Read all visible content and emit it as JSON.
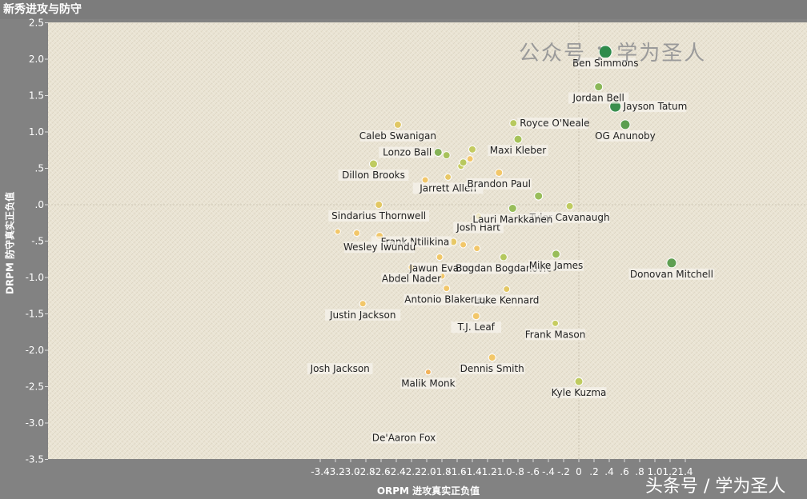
{
  "title": "新秀进攻与防守",
  "watermark_top": "公众号 ：学为圣人",
  "watermark_bottom": "头条号 / 学为圣人",
  "chart_data": {
    "type": "scatter",
    "title": "新秀进攻与防守",
    "xlabel": "ORPM 进攻真实正负值",
    "ylabel": "DRPM 防守真实正负值",
    "xlim": [
      -3.5,
      1.5
    ],
    "ylim": [
      -3.6,
      2.6
    ],
    "x_ticks": [
      {
        "v": -3.4,
        "t": "-3.4"
      },
      {
        "v": -3.2,
        "t": "-3.2"
      },
      {
        "v": -3.0,
        "t": "-3.0"
      },
      {
        "v": -2.8,
        "t": "-2.8"
      },
      {
        "v": -2.6,
        "t": "-2.6"
      },
      {
        "v": -2.4,
        "t": "-2.4"
      },
      {
        "v": -2.2,
        "t": "-2.2"
      },
      {
        "v": -2.0,
        "t": "-2.0"
      },
      {
        "v": -1.8,
        "t": "-1.8"
      },
      {
        "v": -1.6,
        "t": "-1.6"
      },
      {
        "v": -1.4,
        "t": "-1.4"
      },
      {
        "v": -1.2,
        "t": "-1.2"
      },
      {
        "v": -1.0,
        "t": "-1.0"
      },
      {
        "v": -0.8,
        "t": "-.8"
      },
      {
        "v": -0.6,
        "t": "-.6"
      },
      {
        "v": -0.4,
        "t": "-.4"
      },
      {
        "v": -0.2,
        "t": "-.2"
      },
      {
        "v": 0.0,
        "t": "0"
      },
      {
        "v": 0.2,
        "t": ".2"
      },
      {
        "v": 0.4,
        "t": ".4"
      },
      {
        "v": 0.6,
        "t": ".6"
      },
      {
        "v": 0.8,
        "t": ".8"
      },
      {
        "v": 1.0,
        "t": "1.0"
      },
      {
        "v": 1.2,
        "t": "1.2"
      },
      {
        "v": 1.4,
        "t": "1.4"
      }
    ],
    "y_ticks": [
      {
        "v": 2.5,
        "t": "2.5"
      },
      {
        "v": 2.0,
        "t": "2.0"
      },
      {
        "v": 1.5,
        "t": "1.5"
      },
      {
        "v": 1.0,
        "t": "1.0"
      },
      {
        "v": 0.5,
        "t": ".5"
      },
      {
        "v": 0.0,
        "t": ".0"
      },
      {
        "v": -0.5,
        "t": "-.5"
      },
      {
        "v": -1.0,
        "t": "-1.0"
      },
      {
        "v": -1.5,
        "t": "-1.5"
      },
      {
        "v": -2.0,
        "t": "-2.0"
      },
      {
        "v": -2.5,
        "t": "-2.5"
      },
      {
        "v": -3.0,
        "t": "-3.0"
      },
      {
        "v": -3.5,
        "t": "-3.5"
      }
    ],
    "grid": false,
    "legend": "none",
    "colors": {
      "plot_bg": "#e9e3d3",
      "high": "#2e8b4b",
      "mid": "#9dbf5b",
      "low": "#f2c76a"
    },
    "points": [
      {
        "name": "Ben Simmons",
        "x": 0.35,
        "y": 2.1,
        "size": 8,
        "color": "#2e8b4b"
      },
      {
        "name": "Jayson Tatum",
        "x": 0.48,
        "y": 1.35,
        "size": 7,
        "color": "#3a8f4e"
      },
      {
        "name": "OG Anunoby",
        "x": 0.61,
        "y": 1.1,
        "size": 6,
        "color": "#5a9e50"
      },
      {
        "name": "Jordan Bell",
        "x": 0.26,
        "y": 1.62,
        "size": 5,
        "color": "#8bb859"
      },
      {
        "name": "Donovan Mitchell",
        "x": 1.22,
        "y": -0.8,
        "size": 6,
        "color": "#5f9f52"
      },
      {
        "name": "Royce O'Neale",
        "x": -0.86,
        "y": 1.12,
        "size": 4.5,
        "color": "#b7c95e"
      },
      {
        "name": "Maxi Kleber",
        "x": -0.8,
        "y": 0.9,
        "size": 5,
        "color": "#a6c25b"
      },
      {
        "name": "Lonzo Ball",
        "x": -1.85,
        "y": 0.72,
        "size": 5,
        "color": "#86b357"
      },
      {
        "name": "Caleb Swanigan",
        "x": -2.38,
        "y": 1.1,
        "size": 4.5,
        "color": "#e0c764"
      },
      {
        "name": "Dillon Brooks",
        "x": -2.7,
        "y": 0.56,
        "size": 5,
        "color": "#bfcb60"
      },
      {
        "name": "Brandon Paul",
        "x": -1.05,
        "y": 0.44,
        "size": 4.5,
        "color": "#f2c76a"
      },
      {
        "name": "Jarrett Allen",
        "x": -1.72,
        "y": 0.38,
        "size": 4,
        "color": "#e8c866"
      },
      {
        "name": "Sindarius Thornwell",
        "x": -2.63,
        "y": 0.0,
        "size": 4.5,
        "color": "#e2c763"
      },
      {
        "name": "Josh Hart",
        "x": -1.32,
        "y": -0.16,
        "size": 4,
        "color": "#dcc662"
      },
      {
        "name": "Lauri Markkanen",
        "x": -0.87,
        "y": -0.05,
        "size": 5,
        "color": "#98bd5a"
      },
      {
        "name": "Tyler Cavanaugh",
        "x": -0.12,
        "y": -0.02,
        "size": 4.5,
        "color": "#bfcb60"
      },
      {
        "name": "Frank Ntilikina",
        "x": -1.65,
        "y": -0.51,
        "size": 4.5,
        "color": "#e7c865"
      },
      {
        "name": "Wesley Iwundu",
        "x": -2.62,
        "y": -0.43,
        "size": 4.5,
        "color": "#f1c76a"
      },
      {
        "name": "Jawun Evans",
        "x": -1.83,
        "y": -0.72,
        "size": 4,
        "color": "#f0c769"
      },
      {
        "name": "Bogdan Bogdanovic",
        "x": -0.99,
        "y": -0.72,
        "size": 4.5,
        "color": "#b4c85e"
      },
      {
        "name": "Mike James",
        "x": -0.3,
        "y": -0.68,
        "size": 5,
        "color": "#98bd5a"
      },
      {
        "name": "Abdel Nader",
        "x": -2.2,
        "y": -0.86,
        "size": 4,
        "color": "#f2c76a"
      },
      {
        "name": "Antonio Blakeney",
        "x": -1.74,
        "y": -1.15,
        "size": 4,
        "color": "#f2c76a"
      },
      {
        "name": "Luke Kennard",
        "x": -0.95,
        "y": -1.16,
        "size": 4,
        "color": "#e3c764"
      },
      {
        "name": "Justin Jackson",
        "x": -2.84,
        "y": -1.36,
        "size": 4,
        "color": "#f2c76a"
      },
      {
        "name": "T.J. Leaf",
        "x": -1.35,
        "y": -1.53,
        "size": 4.5,
        "color": "#f2c76a"
      },
      {
        "name": "Frank Mason",
        "x": -0.31,
        "y": -1.63,
        "size": 4,
        "color": "#c7cc61"
      },
      {
        "name": "Josh Jackson",
        "x": -3.14,
        "y": -2.1,
        "size": 0,
        "color": "#f2c76a"
      },
      {
        "name": "Dennis Smith",
        "x": -1.14,
        "y": -2.1,
        "size": 4.5,
        "color": "#f2c76a"
      },
      {
        "name": "Malik Monk",
        "x": -1.98,
        "y": -2.3,
        "size": 3.5,
        "color": "#f2b25a"
      },
      {
        "name": "Kyle Kuzma",
        "x": 0.0,
        "y": -2.43,
        "size": 5,
        "color": "#bfcb60"
      },
      {
        "name": "De'Aaron Fox",
        "x": -2.3,
        "y": -3.05,
        "size": 0,
        "color": "#f2c76a"
      },
      {
        "name": "",
        "x": -1.74,
        "y": 0.68,
        "size": 4.5,
        "color": "#a8c25c"
      },
      {
        "name": "",
        "x": -1.4,
        "y": 0.76,
        "size": 4.5,
        "color": "#c4cb61"
      },
      {
        "name": "",
        "x": -1.52,
        "y": 0.58,
        "size": 4.5,
        "color": "#b8c85e"
      },
      {
        "name": "",
        "x": -1.55,
        "y": 0.53,
        "size": 4,
        "color": "#c7cc61"
      },
      {
        "name": "",
        "x": -1.43,
        "y": 0.63,
        "size": 4,
        "color": "#f2c76a"
      },
      {
        "name": "",
        "x": -2.02,
        "y": 0.34,
        "size": 4,
        "color": "#f2c76a"
      },
      {
        "name": "",
        "x": -0.53,
        "y": 0.12,
        "size": 5,
        "color": "#98bd5a"
      },
      {
        "name": "",
        "x": -3.17,
        "y": -0.37,
        "size": 3.5,
        "color": "#f2c76a"
      },
      {
        "name": "",
        "x": -2.92,
        "y": -0.39,
        "size": 4,
        "color": "#f2c76a"
      },
      {
        "name": "",
        "x": -1.52,
        "y": -0.55,
        "size": 4,
        "color": "#f2c76a"
      },
      {
        "name": "",
        "x": -1.34,
        "y": -0.6,
        "size": 4,
        "color": "#f2c76a"
      },
      {
        "name": "",
        "x": -1.8,
        "y": -0.98,
        "size": 4,
        "color": "#f2c76a"
      }
    ]
  }
}
